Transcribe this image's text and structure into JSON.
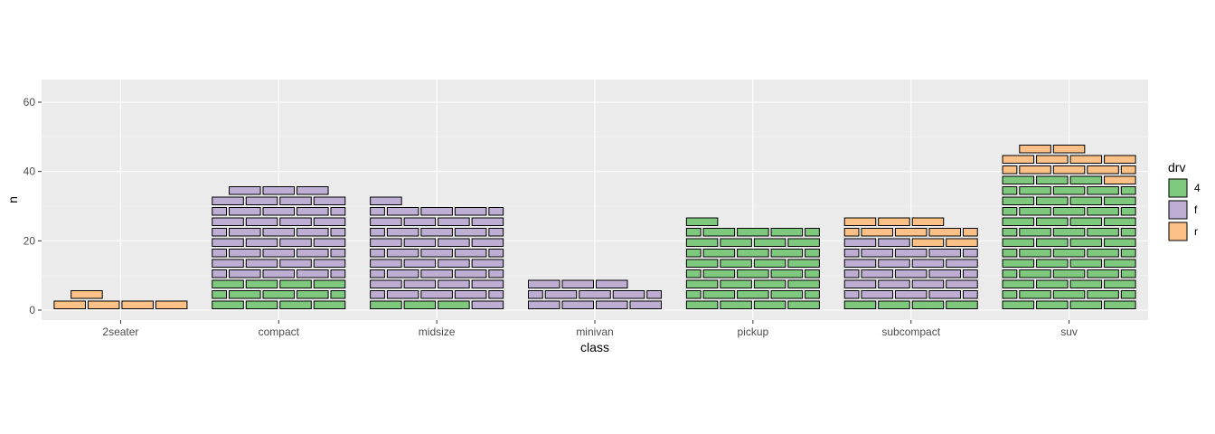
{
  "chart_data": {
    "type": "bar",
    "style": "stacked brick (waffle) bar chart",
    "title": "",
    "xlabel": "class",
    "ylabel": "n",
    "categories": [
      "2seater",
      "compact",
      "midsize",
      "minivan",
      "pickup",
      "subcompact",
      "suv"
    ],
    "ylim": [
      0,
      66
    ],
    "yticks": [
      0,
      20,
      40,
      60
    ],
    "grid": true,
    "legend": {
      "title": "drv",
      "placement": "right",
      "entries": [
        {
          "key": "4",
          "label": "4",
          "color": "#7fc97f"
        },
        {
          "key": "f",
          "label": "f",
          "color": "#beaed4"
        },
        {
          "key": "r",
          "label": "r",
          "color": "#fdc086"
        }
      ]
    },
    "series": [
      {
        "name": "4",
        "values": [
          0,
          12,
          3,
          0,
          33,
          4,
          51
        ]
      },
      {
        "name": "f",
        "values": [
          0,
          35,
          38,
          11,
          0,
          22,
          0
        ]
      },
      {
        "name": "r",
        "values": [
          5,
          0,
          0,
          0,
          0,
          9,
          11
        ]
      }
    ],
    "bricks_per_row": 4
  },
  "colors": {
    "panel_background": "#ebebeb",
    "grid_major": "#ffffff",
    "grid_minor": "#f5f5f5",
    "brick_border": "#000000"
  }
}
